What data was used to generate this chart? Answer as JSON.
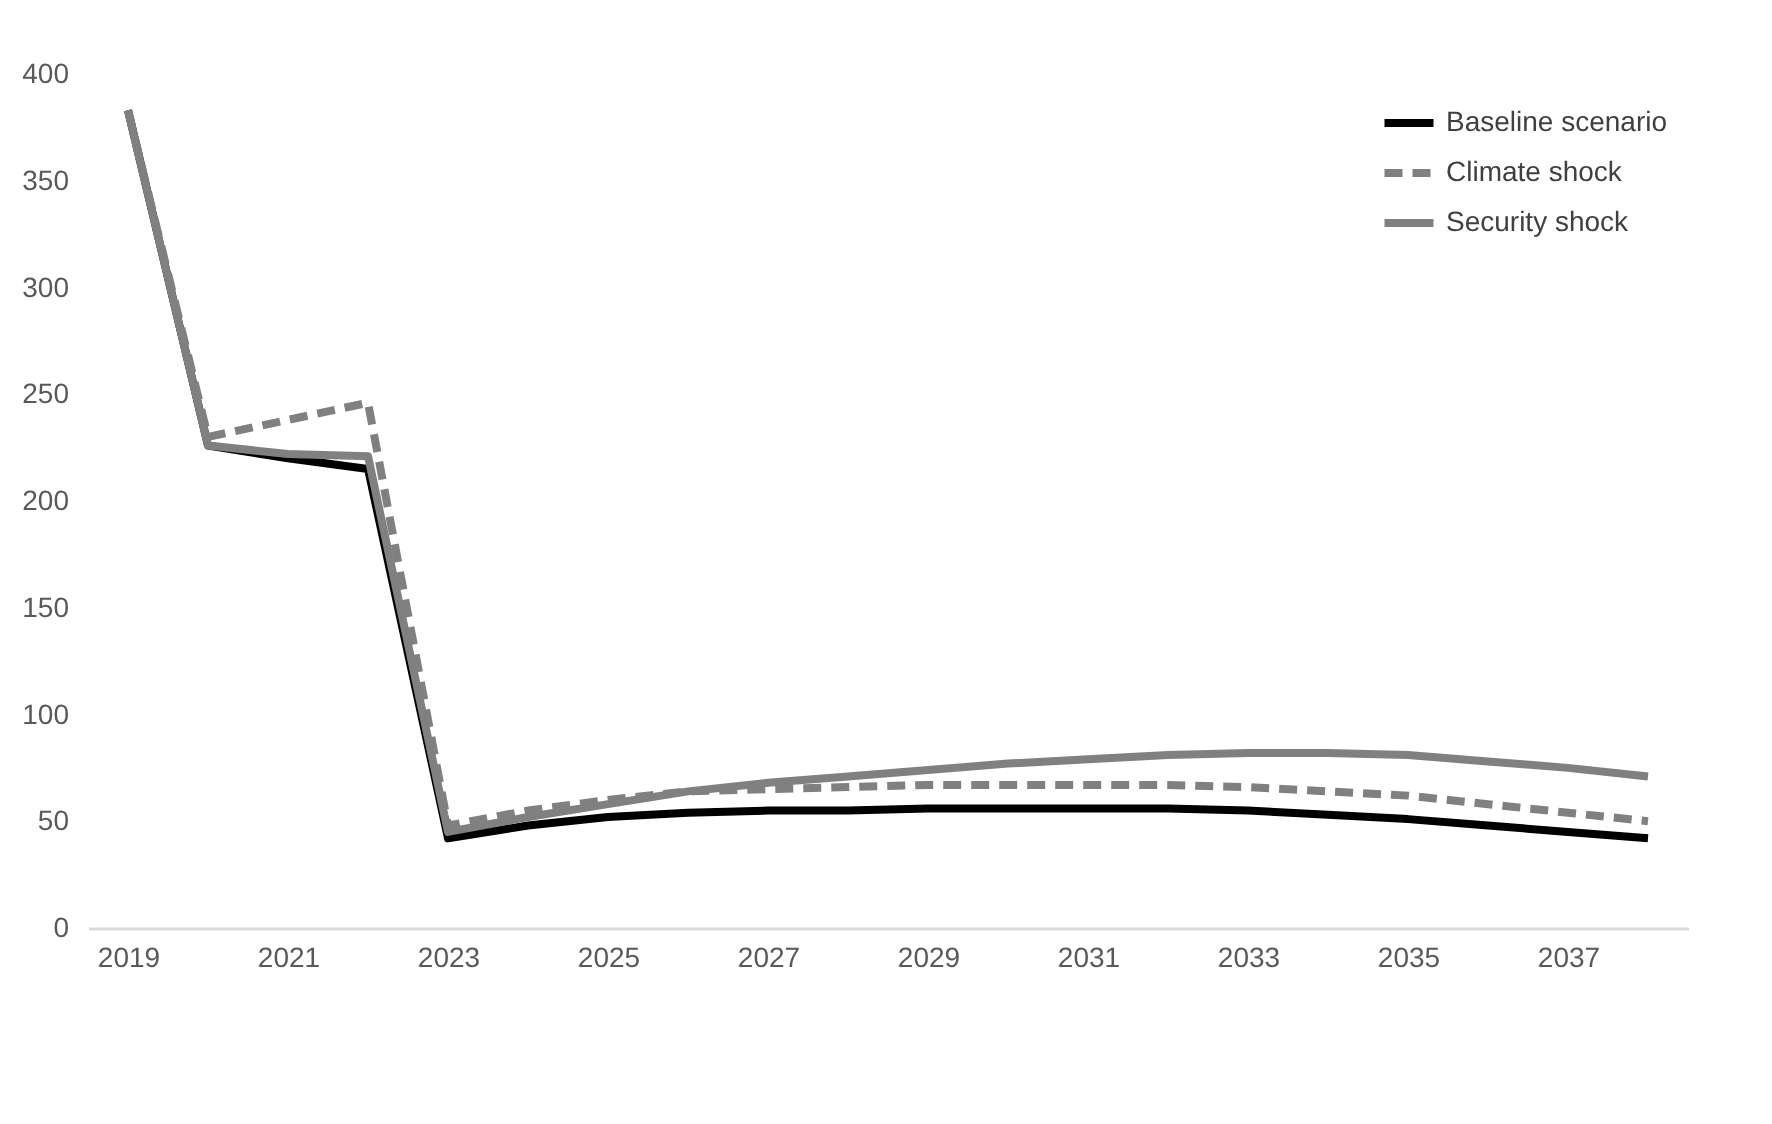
{
  "chart_data": {
    "type": "line",
    "categories": [
      "2019",
      null,
      "2021",
      null,
      "2023",
      null,
      "2025",
      null,
      "2027",
      null,
      "2029",
      null,
      "2031",
      null,
      "2033",
      null,
      "2035",
      null,
      "2037",
      null
    ],
    "series": [
      {
        "name": "Baseline scenario",
        "color": "#000000",
        "line_style": "solid",
        "values": [
          383,
          226,
          220,
          215,
          42,
          48,
          52,
          54,
          55,
          55,
          56,
          56,
          56,
          56,
          55,
          53,
          51,
          48,
          45,
          42
        ]
      },
      {
        "name": "Climate shock",
        "color": "#808080",
        "line_style": "dashed",
        "values": [
          383,
          230,
          238,
          246,
          48,
          55,
          60,
          64,
          65,
          66,
          67,
          67,
          67,
          67,
          66,
          64,
          62,
          58,
          54,
          50
        ]
      },
      {
        "name": "Security shock",
        "color": "#808080",
        "line_style": "solid",
        "values": [
          383,
          226,
          222,
          221,
          45,
          52,
          58,
          64,
          68,
          71,
          74,
          77,
          79,
          81,
          82,
          82,
          81,
          78,
          75,
          71
        ]
      }
    ],
    "ylim": [
      0,
      400
    ],
    "yticks": [
      0,
      50,
      100,
      150,
      200,
      250,
      300,
      350,
      400
    ],
    "grid": false,
    "legend": "top right",
    "marker": "none"
  }
}
